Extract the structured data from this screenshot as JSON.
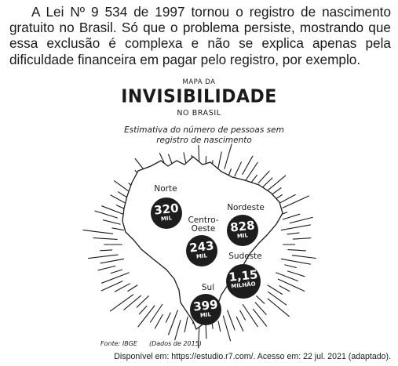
{
  "intro": {
    "text": "A Lei Nº 9 534 de 1997 tornou o registro de nascimento gratuito no Brasil. Só que o problema persiste, mostrando que essa exclusão é complexa e não se explica apenas pela dificuldade financeira em pagar pelo registro, por exemplo."
  },
  "map": {
    "kicker": "MAPA DA",
    "title": "INVISIBILIDADE",
    "subtitle": "NO BRASIL",
    "caption_line1": "Estimativa do número de pessoas sem",
    "caption_line2": "registro de nascimento",
    "regions": [
      {
        "name": "Norte",
        "value": "320",
        "unit": "MIL"
      },
      {
        "name_line1": "Centro-",
        "name_line2": "Oeste",
        "value": "243",
        "unit": "MIL"
      },
      {
        "name": "Nordeste",
        "value": "828",
        "unit": "MIL"
      },
      {
        "name": "Sudeste",
        "value": "1,15",
        "unit": "MILHÃO"
      },
      {
        "name": "Sul",
        "value": "399",
        "unit": "MIL"
      }
    ],
    "source": "Fonte: IBGE",
    "data_note": "(Dados de 2015)",
    "colors": {
      "bubble": "#1d1d1d",
      "ink": "#1a1a1a"
    }
  },
  "credit": "Disponível em: https://estudio.r7.com/. Acesso em: 22 jul. 2021 (adaptado)."
}
